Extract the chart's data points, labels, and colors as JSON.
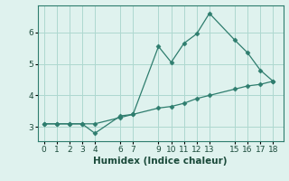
{
  "line1_x": [
    0,
    1,
    2,
    3,
    4,
    6,
    7,
    9,
    10,
    11,
    12,
    13,
    15,
    16,
    17,
    18
  ],
  "line1_y": [
    3.1,
    3.1,
    3.1,
    3.1,
    2.8,
    3.35,
    3.4,
    5.55,
    5.05,
    5.65,
    5.95,
    6.6,
    5.75,
    5.35,
    4.8,
    4.45
  ],
  "line2_x": [
    0,
    1,
    2,
    3,
    4,
    6,
    7,
    9,
    10,
    11,
    12,
    13,
    15,
    16,
    17,
    18
  ],
  "line2_y": [
    3.1,
    3.1,
    3.1,
    3.1,
    3.1,
    3.3,
    3.4,
    3.6,
    3.65,
    3.75,
    3.9,
    4.0,
    4.2,
    4.3,
    4.35,
    4.45
  ],
  "line_color": "#2e7d6e",
  "bg_color": "#dff2ee",
  "grid_color": "#aed8d0",
  "xlabel": "Humidex (Indice chaleur)",
  "xlim": [
    -0.5,
    18.8
  ],
  "ylim": [
    2.55,
    6.85
  ],
  "yticks": [
    3,
    4,
    5,
    6
  ],
  "xticks": [
    0,
    1,
    2,
    3,
    4,
    6,
    7,
    9,
    10,
    11,
    12,
    13,
    15,
    16,
    17,
    18
  ],
  "tick_fontsize": 6.5,
  "label_fontsize": 7.5
}
